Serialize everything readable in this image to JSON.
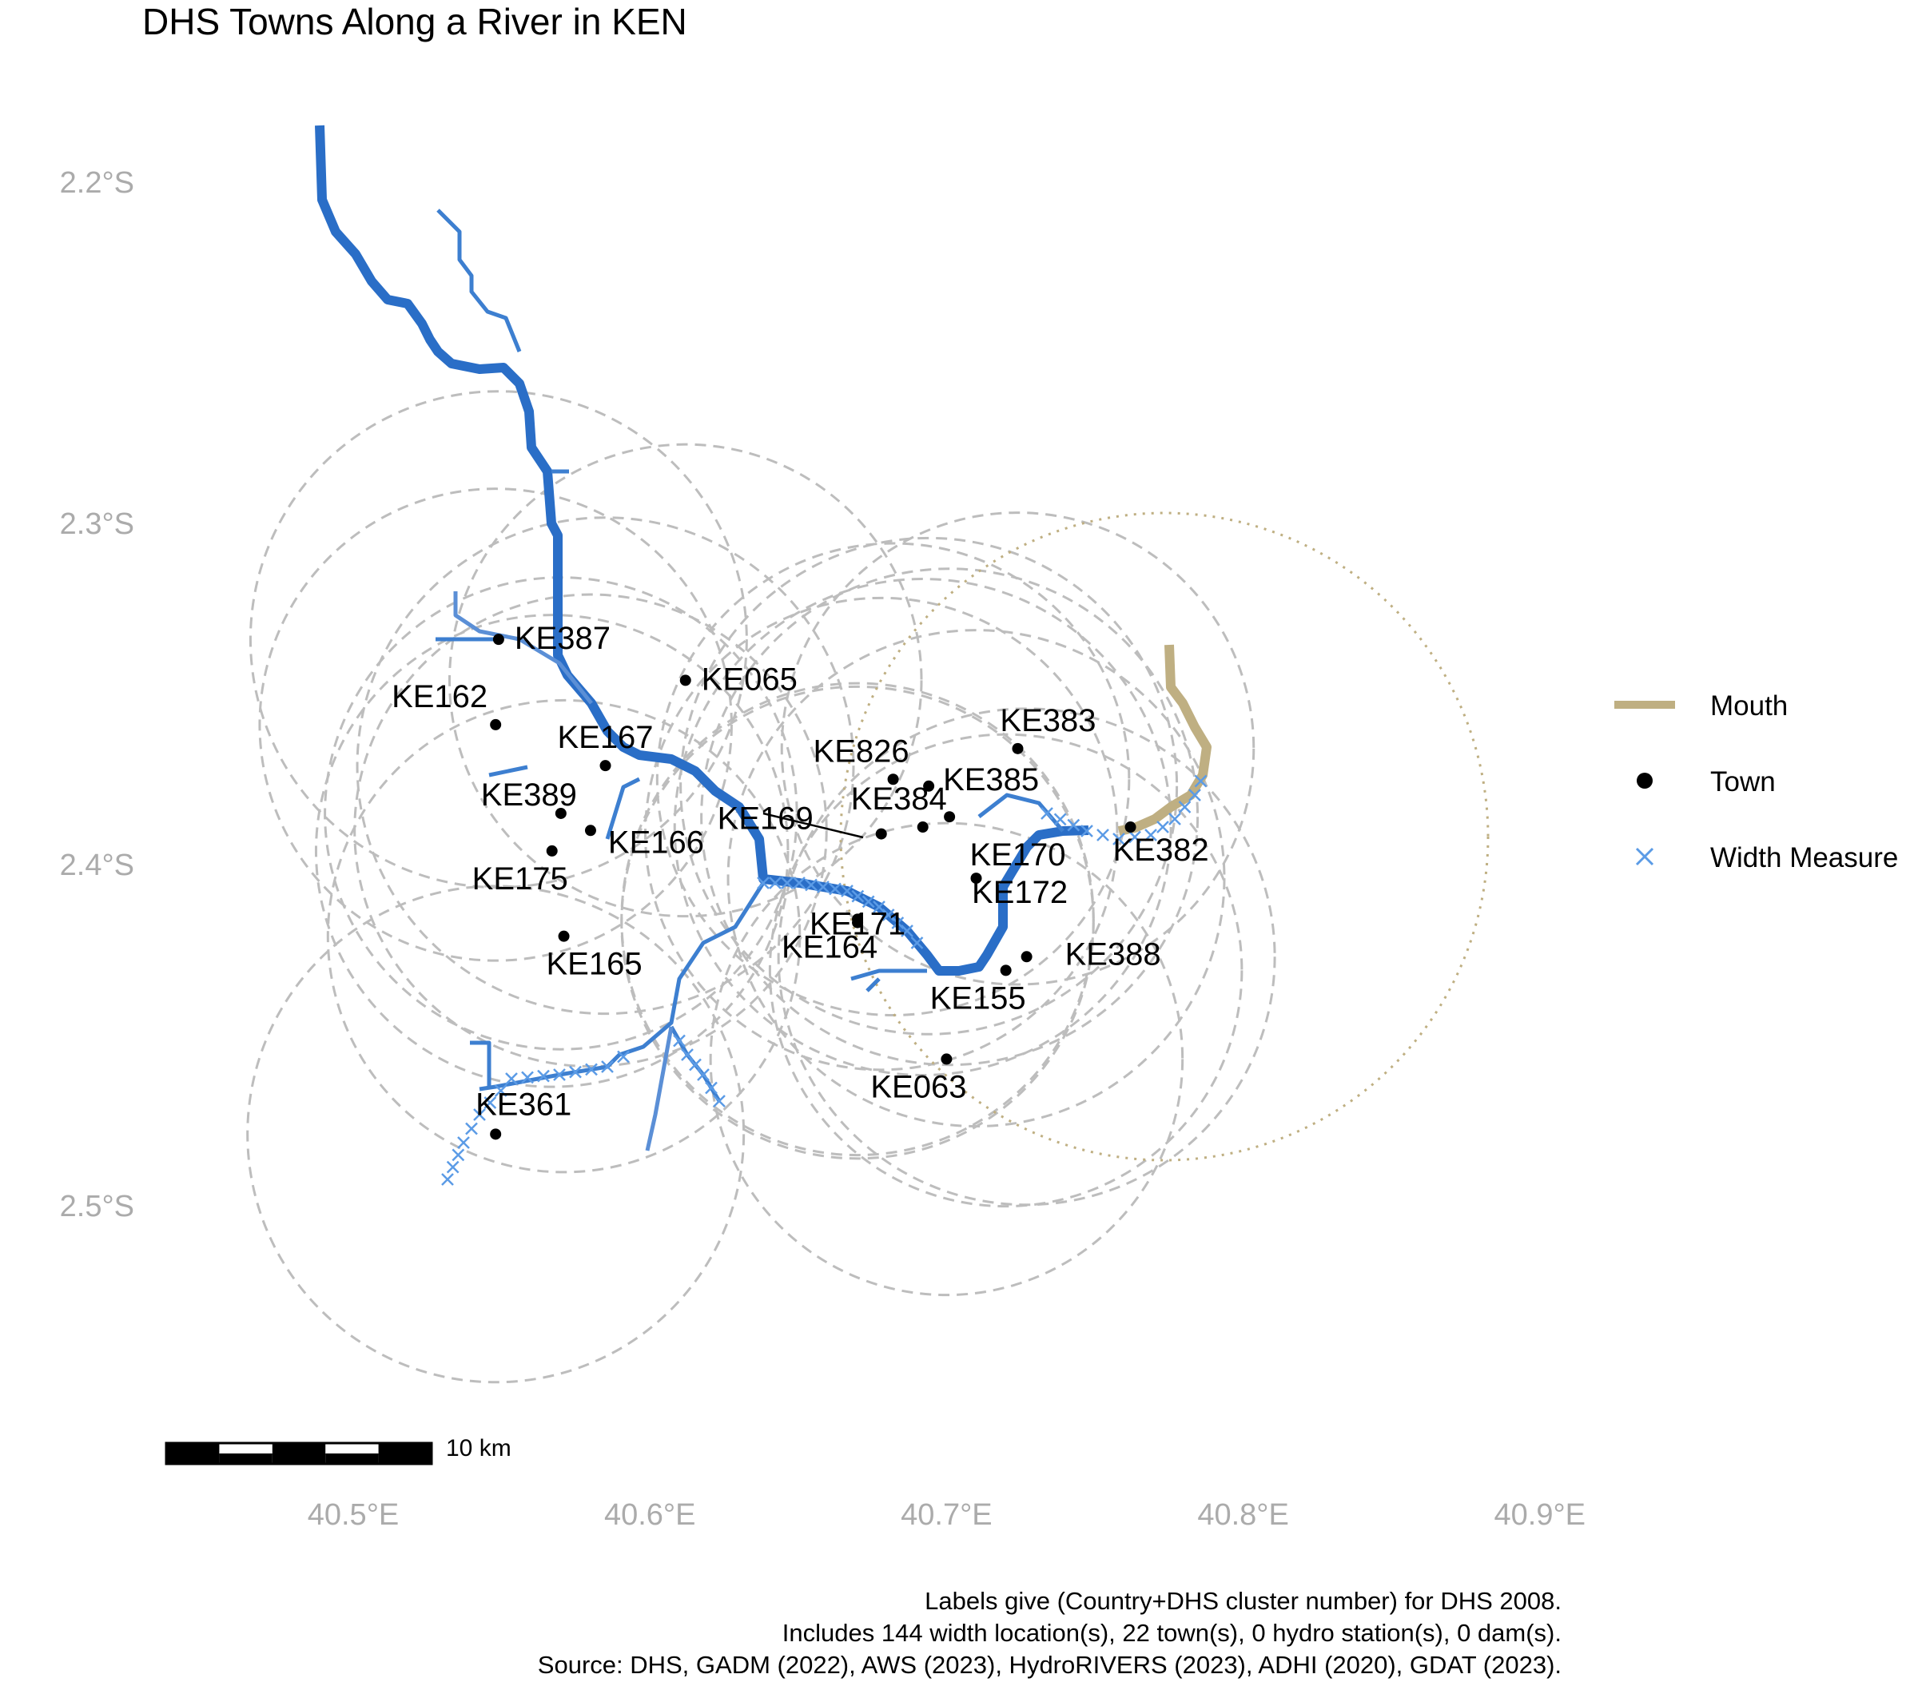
{
  "title": "DHS Towns Along a River in KEN",
  "caption": [
    "Labels give (Country+DHS cluster number) for DHS 2008.",
    "Includes 144 width location(s), 22 town(s), 0 hydro station(s), 0 dam(s).",
    "Source: DHS, GADM (2022), AWS (2023), HydroRIVERS (2023), ADHI (2020), GDAT (2023)."
  ],
  "axes": {
    "x_ticks": [
      "40.5°E",
      "40.6°E",
      "40.7°E",
      "40.8°E",
      "40.9°E"
    ],
    "y_ticks": [
      "2.2°S",
      "2.3°S",
      "2.4°S",
      "2.5°S"
    ],
    "x_range": [
      40.5,
      40.9
    ],
    "y_range": [
      -2.5,
      -2.2
    ]
  },
  "legend": [
    {
      "key": "mouth",
      "label": "Mouth",
      "color": "#BFAF82"
    },
    {
      "key": "town",
      "label": "Town",
      "color": "#000000"
    },
    {
      "key": "width",
      "label": "Width Measure",
      "color": "#5B9BE6"
    }
  ],
  "scale_bar": {
    "label": "10 km"
  },
  "colors": {
    "river": "#2A6EC7",
    "tributary": "#3D7FD0",
    "mouth": "#BFAF82",
    "circle": "#BDBDBD",
    "width": "#5B9BE6",
    "axis_text": "#ABABAB"
  },
  "towns": [
    {
      "label": "KE387",
      "lon": 40.549,
      "lat": -2.334
    },
    {
      "label": "KE162",
      "lon": 40.548,
      "lat": -2.359
    },
    {
      "label": "KE065",
      "lon": 40.612,
      "lat": -2.346
    },
    {
      "label": "KE167",
      "lon": 40.585,
      "lat": -2.371
    },
    {
      "label": "KE826",
      "lon": 40.682,
      "lat": -2.375
    },
    {
      "label": "KE383",
      "lon": 40.724,
      "lat": -2.366
    },
    {
      "label": "KE385",
      "lon": 40.694,
      "lat": -2.377
    },
    {
      "label": "KE389",
      "lon": 40.57,
      "lat": -2.385
    },
    {
      "label": "KE169",
      "lon": 40.678,
      "lat": -2.391
    },
    {
      "label": "KE384",
      "lon": 40.692,
      "lat": -2.389
    },
    {
      "label": "KE175",
      "lon": 40.567,
      "lat": -2.396
    },
    {
      "label": "KE166",
      "lon": 40.58,
      "lat": -2.39
    },
    {
      "label": "KE170",
      "lon": 40.71,
      "lat": -2.404
    },
    {
      "label": "KE382",
      "lon": 40.762,
      "lat": -2.389
    },
    {
      "label": "KE171",
      "lon": 40.67,
      "lat": -2.417
    },
    {
      "label": "KE172",
      "lon": 40.701,
      "lat": -2.386
    },
    {
      "label": "KE164",
      "lon": 40.67,
      "lat": -2.416
    },
    {
      "label": "KE165",
      "lon": 40.571,
      "lat": -2.421
    },
    {
      "label": "KE388",
      "lon": 40.727,
      "lat": -2.427
    },
    {
      "label": "KE155",
      "lon": 40.72,
      "lat": -2.431
    },
    {
      "label": "KE063",
      "lon": 40.7,
      "lat": -2.457
    },
    {
      "label": "KE361",
      "lon": 40.548,
      "lat": -2.479
    }
  ]
}
